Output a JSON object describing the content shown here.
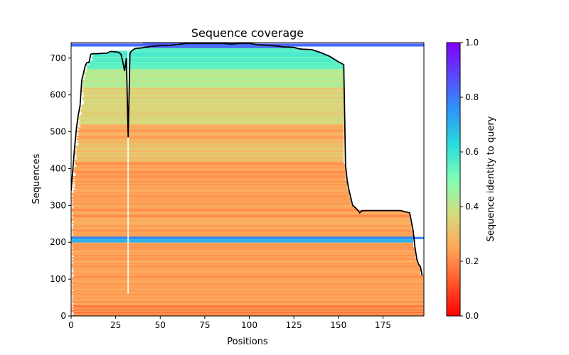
{
  "chart_data": {
    "type": "heatmap",
    "title": "Sequence coverage",
    "xlabel": "Positions",
    "ylabel": "Sequences",
    "xlim": [
      0,
      198
    ],
    "ylim": [
      0,
      742
    ],
    "xticks": [
      0,
      25,
      50,
      75,
      100,
      125,
      150,
      175
    ],
    "yticks": [
      0,
      100,
      200,
      300,
      400,
      500,
      600,
      700
    ],
    "colorbar": {
      "label": "Sequence identity to query",
      "range": [
        0,
        1
      ],
      "ticks": [
        "0.0",
        "0.2",
        "0.4",
        "0.6",
        "0.8",
        "1.0"
      ],
      "colormap": "rainbow"
    },
    "coverage_line": {
      "name": "coverage",
      "color": "#000000",
      "x": [
        0,
        1,
        2,
        3,
        4,
        5,
        6,
        7,
        8,
        9,
        10,
        11,
        12,
        15,
        18,
        20,
        22,
        25,
        27,
        28,
        29,
        30,
        31,
        32,
        33,
        34,
        36,
        40,
        45,
        50,
        55,
        60,
        65,
        70,
        75,
        80,
        85,
        90,
        95,
        100,
        105,
        110,
        115,
        120,
        125,
        128,
        130,
        135,
        140,
        145,
        150,
        152,
        153,
        154,
        155,
        156,
        158,
        160,
        162,
        163,
        165,
        170,
        175,
        180,
        185,
        190,
        192,
        193,
        194,
        195,
        196,
        197
      ],
      "y": [
        340,
        400,
        460,
        510,
        545,
        570,
        640,
        660,
        680,
        688,
        688,
        710,
        712,
        712,
        713,
        713,
        718,
        717,
        715,
        710,
        690,
        665,
        700,
        485,
        712,
        720,
        726,
        728,
        732,
        734,
        734,
        737,
        740,
        740,
        740,
        740,
        740,
        738,
        740,
        740,
        736,
        735,
        733,
        730,
        729,
        725,
        724,
        723,
        715,
        705,
        690,
        685,
        682,
        410,
        365,
        340,
        300,
        292,
        280,
        285,
        286,
        286,
        286,
        286,
        286,
        280,
        230,
        185,
        155,
        140,
        135,
        110
      ]
    },
    "identity_bands": [
      {
        "from": 0,
        "to": 30,
        "identity": 0.2
      },
      {
        "from": 30,
        "to": 200,
        "identity": 0.24
      },
      {
        "from": 200,
        "to": 215,
        "identity": 0.7
      },
      {
        "from": 215,
        "to": 420,
        "identity": 0.24
      },
      {
        "from": 420,
        "to": 480,
        "identity": 0.3
      },
      {
        "from": 480,
        "to": 520,
        "identity": 0.26
      },
      {
        "from": 520,
        "to": 620,
        "identity": 0.36
      },
      {
        "from": 620,
        "to": 670,
        "identity": 0.42
      },
      {
        "from": 670,
        "to": 728,
        "identity": 0.55
      },
      {
        "from": 728,
        "to": 742,
        "identity": 0.85
      }
    ]
  }
}
